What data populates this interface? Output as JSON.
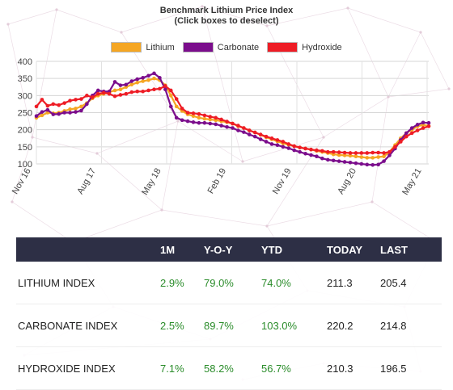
{
  "title_line1": "Benchmark Lithium Price Index",
  "title_line2": "(Click boxes to deselect)",
  "legend": [
    {
      "name": "Lithium",
      "color": "#f5a623"
    },
    {
      "name": "Carbonate",
      "color": "#7b0d8c"
    },
    {
      "name": "Hydroxide",
      "color": "#ee1c25"
    }
  ],
  "chart_data": {
    "type": "line",
    "title": "Benchmark Lithium Price Index",
    "x_tick_labels": [
      "Nov 16",
      "Aug 17",
      "May 18",
      "Feb 19",
      "Nov 19",
      "Aug 20",
      "May 21"
    ],
    "y_ticks": [
      100,
      150,
      200,
      250,
      300,
      350,
      400
    ],
    "ylim": [
      100,
      400
    ],
    "grid": true,
    "legend_position": "top",
    "series": [
      {
        "name": "Lithium",
        "color": "#f5a623",
        "values": [
          235,
          242,
          250,
          248,
          250,
          255,
          260,
          262,
          268,
          278,
          292,
          300,
          305,
          310,
          315,
          318,
          325,
          332,
          338,
          342,
          345,
          350,
          345,
          330,
          300,
          268,
          255,
          245,
          240,
          235,
          232,
          230,
          228,
          225,
          222,
          218,
          210,
          205,
          198,
          192,
          185,
          178,
          172,
          166,
          160,
          156,
          152,
          148,
          145,
          142,
          138,
          135,
          132,
          128,
          126,
          125,
          124,
          122,
          120,
          118,
          118,
          120,
          122,
          135,
          155,
          175,
          190,
          200,
          210,
          214,
          211
        ]
      },
      {
        "name": "Carbonate",
        "color": "#7b0d8c",
        "values": [
          240,
          252,
          258,
          245,
          246,
          250,
          250,
          252,
          256,
          275,
          300,
          315,
          312,
          312,
          340,
          330,
          332,
          342,
          348,
          352,
          358,
          365,
          352,
          318,
          268,
          235,
          228,
          225,
          222,
          220,
          220,
          218,
          216,
          212,
          208,
          205,
          198,
          193,
          186,
          180,
          172,
          165,
          158,
          155,
          150,
          146,
          140,
          135,
          130,
          126,
          122,
          116,
          112,
          110,
          108,
          106,
          104,
          102,
          100,
          98,
          97,
          98,
          108,
          125,
          145,
          170,
          190,
          205,
          215,
          221,
          220
        ]
      },
      {
        "name": "Hydroxide",
        "color": "#ee1c25",
        "values": [
          268,
          288,
          270,
          275,
          272,
          278,
          285,
          288,
          290,
          300,
          295,
          305,
          308,
          305,
          298,
          302,
          305,
          310,
          312,
          312,
          315,
          318,
          320,
          328,
          315,
          290,
          262,
          250,
          248,
          246,
          242,
          238,
          235,
          230,
          224,
          218,
          212,
          205,
          198,
          192,
          186,
          180,
          175,
          170,
          165,
          158,
          152,
          148,
          145,
          142,
          140,
          138,
          135,
          135,
          134,
          133,
          132,
          132,
          132,
          132,
          133,
          133,
          132,
          135,
          150,
          165,
          180,
          190,
          198,
          205,
          210
        ]
      }
    ]
  },
  "table": {
    "headers": [
      "",
      "1M",
      "Y-O-Y",
      "YTD",
      "TODAY",
      "LAST"
    ],
    "rows": [
      {
        "name": "LITHIUM INDEX",
        "m1": "2.9%",
        "yoy": "79.0%",
        "ytd": "74.0%",
        "today": "211.3",
        "last": "205.4"
      },
      {
        "name": "CARBONATE INDEX",
        "m1": "2.5%",
        "yoy": "89.7%",
        "ytd": "103.0%",
        "today": "220.2",
        "last": "214.8"
      },
      {
        "name": "HYDROXIDE INDEX",
        "m1": "7.1%",
        "yoy": "58.2%",
        "ytd": "56.7%",
        "today": "210.3",
        "last": "196.5"
      }
    ]
  }
}
